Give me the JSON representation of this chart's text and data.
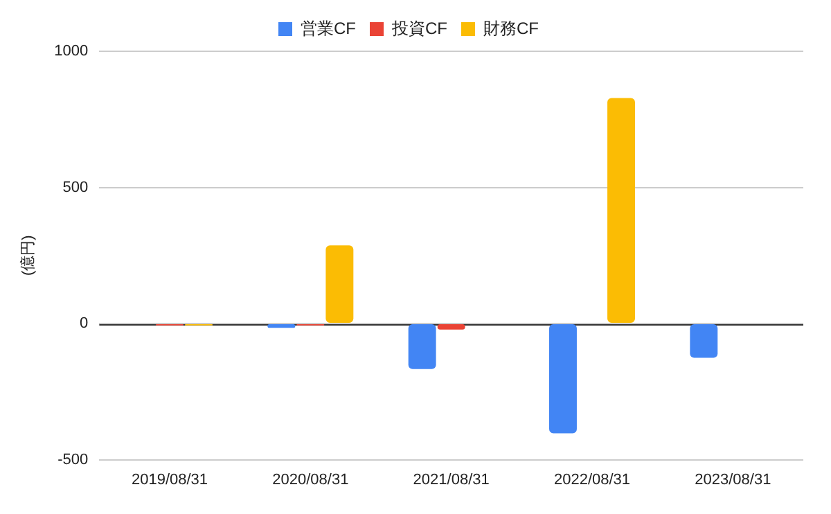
{
  "chart_data": {
    "type": "bar",
    "ylabel": "(億円)",
    "categories": [
      "2019/08/31",
      "2020/08/31",
      "2021/08/31",
      "2022/08/31",
      "2023/08/31"
    ],
    "series": [
      {
        "name": "営業CF",
        "color": "#4285f4",
        "values": [
          0,
          -16,
          -167,
          -403,
          -126
        ]
      },
      {
        "name": "投資CF",
        "color": "#ea4335",
        "values": [
          -7,
          -7,
          -22,
          0,
          0
        ]
      },
      {
        "name": "財務CF",
        "color": "#fbbc04",
        "values": [
          -7,
          287,
          0,
          828,
          0
        ]
      }
    ],
    "ylim": [
      -500,
      1000
    ],
    "yticks": [
      -500,
      0,
      500,
      1000
    ],
    "grid": "y",
    "legend": "top"
  }
}
